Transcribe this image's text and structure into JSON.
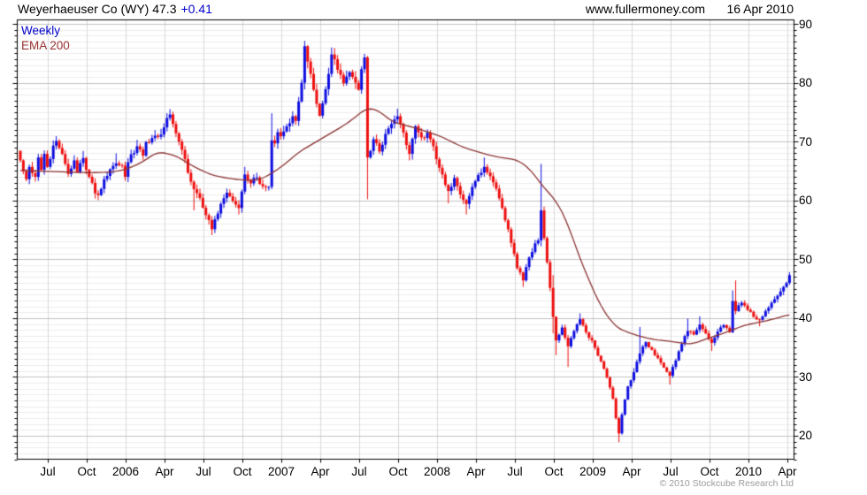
{
  "header": {
    "title": "Weyerhaeuser Co (WY) 47.3",
    "change": "+0.41",
    "website": "www.fullermoney.com",
    "date": "16 Apr 2010"
  },
  "legend": {
    "timeframe": "Weekly",
    "overlay": "EMA 200"
  },
  "footer": {
    "copyright": "© 2010 Stockcube Research Ltd"
  },
  "chart_data": {
    "type": "candlestick",
    "title": "Weyerhaeuser Co (WY)",
    "timeframe": "Weekly",
    "overlay": "EMA 200",
    "last_price": 47.3,
    "change": 0.41,
    "weeks": 258,
    "x_axis": {
      "start": "May 2005",
      "end": "Apr 2010",
      "tick_labels": [
        "Jul",
        "Oct",
        "2006",
        "Apr",
        "Jul",
        "Oct",
        "2007",
        "Apr",
        "Jul",
        "Oct",
        "2008",
        "Apr",
        "Jul",
        "Oct",
        "2009",
        "Apr",
        "Jul",
        "Oct",
        "2010",
        "Apr"
      ]
    },
    "y_axis": {
      "side": "right",
      "ticks": [
        20,
        30,
        40,
        50,
        60,
        70,
        80,
        90
      ],
      "minor_step": 1,
      "min": 15.9,
      "max": 90.8
    },
    "close_anchors": [
      [
        0,
        66.8
      ],
      [
        1,
        64.9
      ],
      [
        2,
        63.6
      ],
      [
        3,
        65.7
      ],
      [
        5,
        64.0
      ],
      [
        6,
        67.3
      ],
      [
        7,
        65.2
      ],
      [
        8,
        67.9
      ],
      [
        9,
        65.7
      ],
      [
        11,
        69.3
      ],
      [
        12,
        70.1
      ],
      [
        13,
        68.9
      ],
      [
        15,
        66.2
      ],
      [
        16,
        64.5
      ],
      [
        18,
        66.8
      ],
      [
        19,
        64.8
      ],
      [
        21,
        67.2
      ],
      [
        23,
        64.0
      ],
      [
        25,
        61.2
      ],
      [
        26,
        60.9
      ],
      [
        28,
        63.6
      ],
      [
        30,
        65.3
      ],
      [
        32,
        66.3
      ],
      [
        34,
        65.9
      ],
      [
        35,
        64.0
      ],
      [
        36,
        66.5
      ],
      [
        39,
        69.2
      ],
      [
        41,
        67.6
      ],
      [
        42,
        69.9
      ],
      [
        44,
        70.6
      ],
      [
        46,
        70.8
      ],
      [
        48,
        72.4
      ],
      [
        50,
        74.6
      ],
      [
        52,
        71.4
      ],
      [
        54,
        68.6
      ],
      [
        56,
        64.7
      ],
      [
        58,
        61.9
      ],
      [
        60,
        60.4
      ],
      [
        62,
        57.5
      ],
      [
        64,
        55.1
      ],
      [
        65,
        56.8
      ],
      [
        67,
        59.4
      ],
      [
        69,
        61.3
      ],
      [
        71,
        59.9
      ],
      [
        73,
        58.7
      ],
      [
        74,
        61.5
      ],
      [
        75,
        64.4
      ],
      [
        77,
        62.9
      ],
      [
        79,
        63.9
      ],
      [
        81,
        62.4
      ],
      [
        83,
        62.3
      ],
      [
        84,
        70.2
      ],
      [
        85,
        69.7
      ],
      [
        86,
        71.6
      ],
      [
        87,
        70.9
      ],
      [
        89,
        72.6
      ],
      [
        91,
        74.3
      ],
      [
        92,
        73.5
      ],
      [
        93,
        76.8
      ],
      [
        94,
        80.0
      ],
      [
        95,
        86.2
      ],
      [
        96,
        83.6
      ],
      [
        97,
        81.5
      ],
      [
        98,
        78.8
      ],
      [
        99,
        76.4
      ],
      [
        100,
        74.4
      ],
      [
        101,
        76.5
      ],
      [
        102,
        78.9
      ],
      [
        103,
        81.5
      ],
      [
        104,
        84.8
      ],
      [
        106,
        82.2
      ],
      [
        108,
        79.9
      ],
      [
        110,
        81.8
      ],
      [
        112,
        80.0
      ],
      [
        113,
        78.8
      ],
      [
        114,
        82.3
      ],
      [
        115,
        84.3
      ],
      [
        116,
        67.3
      ],
      [
        118,
        70.4
      ],
      [
        120,
        68.3
      ],
      [
        122,
        71.3
      ],
      [
        124,
        73.0
      ],
      [
        126,
        74.3
      ],
      [
        128,
        71.5
      ],
      [
        130,
        67.9
      ],
      [
        131,
        70.5
      ],
      [
        132,
        72.6
      ],
      [
        134,
        70.7
      ],
      [
        136,
        71.5
      ],
      [
        138,
        69.2
      ],
      [
        139,
        67.0
      ],
      [
        141,
        64.4
      ],
      [
        143,
        61.6
      ],
      [
        145,
        63.8
      ],
      [
        147,
        61.0
      ],
      [
        149,
        59.4
      ],
      [
        151,
        62.3
      ],
      [
        153,
        64.3
      ],
      [
        155,
        65.7
      ],
      [
        157,
        64.1
      ],
      [
        159,
        62.0
      ],
      [
        161,
        58.7
      ],
      [
        163,
        55.1
      ],
      [
        165,
        50.9
      ],
      [
        166,
        48.5
      ],
      [
        168,
        46.4
      ],
      [
        170,
        50.3
      ],
      [
        172,
        52.7
      ],
      [
        173,
        53.2
      ],
      [
        174,
        58.3
      ],
      [
        176,
        49.5
      ],
      [
        178,
        40.2
      ],
      [
        179,
        36.2
      ],
      [
        181,
        38.4
      ],
      [
        183,
        35.2
      ],
      [
        185,
        37.8
      ],
      [
        187,
        39.8
      ],
      [
        189,
        37.6
      ],
      [
        191,
        36.2
      ],
      [
        193,
        33.6
      ],
      [
        195,
        31.4
      ],
      [
        197,
        28.2
      ],
      [
        198,
        26.3
      ],
      [
        199,
        23.0
      ],
      [
        200,
        20.4
      ],
      [
        201,
        23.6
      ],
      [
        203,
        28.4
      ],
      [
        205,
        30.8
      ],
      [
        207,
        34.0
      ],
      [
        209,
        35.9
      ],
      [
        211,
        34.6
      ],
      [
        213,
        33.2
      ],
      [
        215,
        31.6
      ],
      [
        217,
        30.2
      ],
      [
        219,
        32.8
      ],
      [
        221,
        35.6
      ],
      [
        223,
        37.8
      ],
      [
        225,
        37.2
      ],
      [
        227,
        38.9
      ],
      [
        229,
        37.4
      ],
      [
        231,
        35.8
      ],
      [
        233,
        37.7
      ],
      [
        235,
        38.8
      ],
      [
        237,
        37.6
      ],
      [
        238,
        42.9
      ],
      [
        239,
        41.2
      ],
      [
        241,
        42.6
      ],
      [
        243,
        41.4
      ],
      [
        245,
        40.2
      ],
      [
        247,
        39.7
      ],
      [
        249,
        41.2
      ],
      [
        251,
        42.6
      ],
      [
        253,
        43.8
      ],
      [
        255,
        45.3
      ],
      [
        257,
        47.3
      ]
    ],
    "extreme_weeks": [
      [
        12,
        70.6,
        null
      ],
      [
        21,
        68.4,
        null
      ],
      [
        25,
        null,
        60.3
      ],
      [
        32,
        68.0,
        null
      ],
      [
        39,
        70.3,
        null
      ],
      [
        50,
        75.5,
        null
      ],
      [
        58,
        null,
        58.3
      ],
      [
        64,
        null,
        54.1
      ],
      [
        73,
        null,
        57.6
      ],
      [
        75,
        65.7,
        null
      ],
      [
        84,
        74.8,
        null
      ],
      [
        95,
        87.1,
        null
      ],
      [
        104,
        85.8,
        null
      ],
      [
        115,
        84.8,
        null
      ],
      [
        116,
        82.5,
        60.2
      ],
      [
        126,
        75.6,
        null
      ],
      [
        130,
        null,
        66.8
      ],
      [
        143,
        null,
        59.5
      ],
      [
        149,
        null,
        57.6
      ],
      [
        155,
        67.3,
        null
      ],
      [
        168,
        null,
        45.3
      ],
      [
        174,
        66.2,
        52.2
      ],
      [
        178,
        47.3,
        37.4
      ],
      [
        179,
        null,
        33.7
      ],
      [
        183,
        null,
        31.7
      ],
      [
        187,
        40.8,
        null
      ],
      [
        200,
        null,
        18.9
      ],
      [
        205,
        31.5,
        null
      ],
      [
        207,
        38.5,
        null
      ],
      [
        217,
        null,
        28.7
      ],
      [
        223,
        39.9,
        null
      ],
      [
        227,
        40.3,
        null
      ],
      [
        231,
        null,
        34.4
      ],
      [
        238,
        44.7,
        null
      ],
      [
        239,
        46.4,
        null
      ],
      [
        247,
        null,
        38.6
      ],
      [
        257,
        47.8,
        null
      ]
    ],
    "ema_anchors": [
      [
        0,
        65.1
      ],
      [
        11,
        64.9
      ],
      [
        23,
        64.7
      ],
      [
        30,
        64.8
      ],
      [
        35,
        65.2
      ],
      [
        40,
        66.3
      ],
      [
        46,
        68.3
      ],
      [
        52,
        67.6
      ],
      [
        58,
        65.7
      ],
      [
        64,
        64.3
      ],
      [
        70,
        63.7
      ],
      [
        76,
        63.4
      ],
      [
        80,
        63.5
      ],
      [
        84,
        64.6
      ],
      [
        88,
        66.0
      ],
      [
        93,
        68.2
      ],
      [
        100,
        70.3
      ],
      [
        109,
        73.0
      ],
      [
        116,
        75.8
      ],
      [
        120,
        75.2
      ],
      [
        124,
        73.4
      ],
      [
        132,
        72.3
      ],
      [
        140,
        71.0
      ],
      [
        148,
        69.0
      ],
      [
        158,
        67.5
      ],
      [
        166,
        66.9
      ],
      [
        170,
        65.5
      ],
      [
        175,
        62.1
      ],
      [
        179,
        60.0
      ],
      [
        183,
        56.0
      ],
      [
        186,
        51.4
      ],
      [
        190,
        46.4
      ],
      [
        194,
        41.9
      ],
      [
        199,
        38.4
      ],
      [
        205,
        37.2
      ],
      [
        211,
        36.4
      ],
      [
        218,
        36.0
      ],
      [
        224,
        35.5
      ],
      [
        230,
        36.6
      ],
      [
        236,
        37.6
      ],
      [
        242,
        38.8
      ],
      [
        248,
        39.4
      ],
      [
        253,
        40.0
      ],
      [
        257,
        40.7
      ]
    ],
    "colors": {
      "up": "#0d0de0",
      "down": "#ee0f0f",
      "ema": "#8b3232",
      "grid_minor": "#ececec",
      "grid_major": "#c0c0c0",
      "grid_vertical": "#d9d9d9",
      "axis": "#000000",
      "title": "#000000",
      "change_text": "#0000cc",
      "weekly_text": "#0000cc",
      "ema_text": "#993333",
      "copyright_text": "#9b9b9b"
    }
  }
}
